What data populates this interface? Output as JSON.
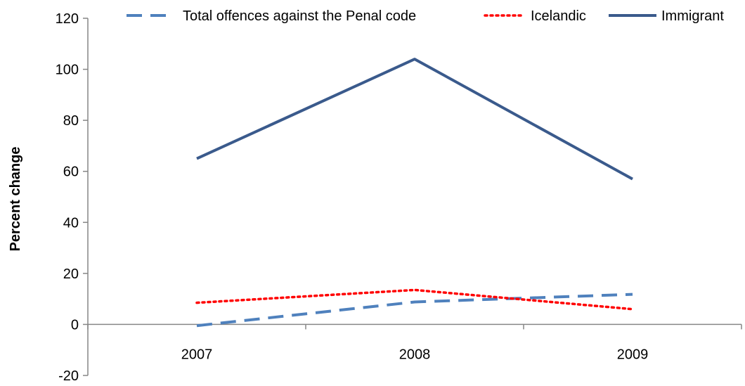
{
  "chart_data": {
    "type": "line",
    "title": "",
    "xlabel": "",
    "ylabel": "Percent change",
    "categories": [
      "2007",
      "2008",
      "2009"
    ],
    "ylim": [
      -20,
      120
    ],
    "yticks": [
      -20,
      0,
      20,
      40,
      60,
      80,
      100,
      120
    ],
    "grid": false,
    "legend_position": "top",
    "series": [
      {
        "name": "Total offences against the Penal code",
        "values": [
          -0.5,
          8.8,
          11.8
        ],
        "color": "#4f81bd",
        "line_style": "dashed"
      },
      {
        "name": "Icelandic",
        "values": [
          8.5,
          13.5,
          6.0
        ],
        "color": "#ff0000",
        "line_style": "dotted"
      },
      {
        "name": "Immigrant",
        "values": [
          65,
          104,
          57
        ],
        "color": "#3a5a8c",
        "line_style": "solid"
      }
    ]
  }
}
